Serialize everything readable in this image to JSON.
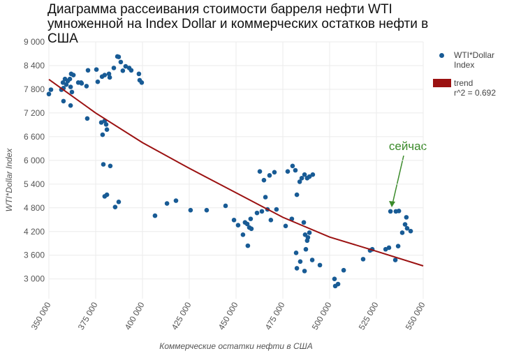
{
  "chart_data": {
    "type": "scatter",
    "title": "Диаграмма рассеивания стоимости барреля нефти WTI умноженной на Index Dollar и коммерческих остатков нефти в США",
    "xlabel": "Коммерческие остатки нефти в США",
    "ylabel": "WTI*Dollar Index",
    "annotation": "сейчас",
    "grid": true,
    "legend": "right",
    "xlim": [
      350000,
      550000
    ],
    "ylim": [
      2500,
      9000
    ],
    "xticks": [
      {
        "value": 350000,
        "label": "350 000"
      },
      {
        "value": 375000,
        "label": "375 000"
      },
      {
        "value": 400000,
        "label": "400 000"
      },
      {
        "value": 425000,
        "label": "425 000"
      },
      {
        "value": 450000,
        "label": "450 000"
      },
      {
        "value": 475000,
        "label": "475 000"
      },
      {
        "value": 500000,
        "label": "500 000"
      },
      {
        "value": 525000,
        "label": "525 000"
      },
      {
        "value": 550000,
        "label": "550 000"
      }
    ],
    "yticks": [
      {
        "value": 3000,
        "label": "3 000"
      },
      {
        "value": 3600,
        "label": "3 600"
      },
      {
        "value": 4200,
        "label": "4 200"
      },
      {
        "value": 4800,
        "label": "4 800"
      },
      {
        "value": 5400,
        "label": "5 400"
      },
      {
        "value": 6000,
        "label": "6 000"
      },
      {
        "value": 6600,
        "label": "6 600"
      },
      {
        "value": 7200,
        "label": "7 200"
      },
      {
        "value": 7800,
        "label": "7 800"
      },
      {
        "value": 8400,
        "label": "8 400"
      },
      {
        "value": 9000,
        "label": "9 000"
      }
    ],
    "series": [
      {
        "name": "WTI*Dollar Index",
        "color": "#185b95",
        "kind": "points",
        "x": [
          350000,
          351100,
          356700,
          357500,
          358600,
          357800,
          359300,
          360100,
          361200,
          361900,
          363100,
          361600,
          362300,
          357800,
          361600,
          365700,
          367200,
          367500,
          370100,
          370900,
          375400,
          376100,
          378400,
          379800,
          382100,
          382500,
          384700,
          386600,
          387300,
          388400,
          389500,
          391000,
          392900,
          394000,
          398100,
          398500,
          399600,
          370500,
          378000,
          379800,
          380600,
          378700,
          381000,
          379100,
          382800,
          379800,
          381000,
          387300,
          385400,
          406700,
          413100,
          417900,
          425700,
          434300,
          444400,
          448900,
          451100,
          453700,
          454800,
          456300,
          456000,
          457100,
          458200,
          457800,
          461200,
          462700,
          463800,
          465700,
          464900,
          467900,
          466800,
          468600,
          470500,
          471600,
          476500,
          477600,
          480200,
          481700,
          482500,
          484000,
          485100,
          486600,
          488000,
          489200,
          491000,
          479800,
          486200,
          486900,
          488000,
          488400,
          489200,
          487300,
          482100,
          484300,
          482500,
          486600,
          490700,
          494800,
          503000,
          502600,
          504500,
          507500,
          517900,
          521600,
          522800,
          529900,
          531700,
          536600,
          535100,
          532500,
          535400,
          537000,
          541000,
          540300,
          541400,
          538800,
          543300
        ],
        "values": [
          7680,
          7790,
          7790,
          7970,
          8060,
          7830,
          7920,
          8010,
          8060,
          8190,
          8160,
          7860,
          7730,
          7500,
          7390,
          7970,
          7970,
          7950,
          7880,
          8280,
          8300,
          7990,
          8120,
          8160,
          8190,
          8100,
          8340,
          8630,
          8620,
          8490,
          8270,
          8380,
          8340,
          8280,
          8190,
          8030,
          7970,
          7060,
          6960,
          7000,
          6910,
          6650,
          6780,
          5900,
          5860,
          5090,
          5130,
          4950,
          4820,
          4600,
          4910,
          4980,
          4740,
          4740,
          4850,
          4490,
          4360,
          4120,
          4430,
          3840,
          4390,
          4300,
          4270,
          4520,
          4670,
          5720,
          4710,
          5070,
          5500,
          5620,
          4760,
          4490,
          5700,
          4760,
          4340,
          5720,
          5860,
          5750,
          5130,
          5460,
          5550,
          5640,
          5550,
          5590,
          5640,
          4520,
          4430,
          4120,
          3970,
          4050,
          4170,
          3750,
          3660,
          3440,
          3270,
          3200,
          3480,
          3350,
          2820,
          3000,
          2870,
          3220,
          3500,
          3720,
          3750,
          3750,
          3790,
          3830,
          3480,
          4710,
          4710,
          4720,
          4560,
          4380,
          4280,
          4170,
          4210
        ]
      },
      {
        "name": "trend",
        "color": "#9b1111",
        "kind": "line",
        "subtext": "r^2 = 0.692",
        "x": [
          350000,
          375000,
          400000,
          425000,
          450000,
          475000,
          500000,
          525000,
          550000
        ],
        "values": [
          8050,
          7200,
          6450,
          5800,
          5180,
          4560,
          4060,
          3700,
          3330
        ]
      }
    ]
  }
}
